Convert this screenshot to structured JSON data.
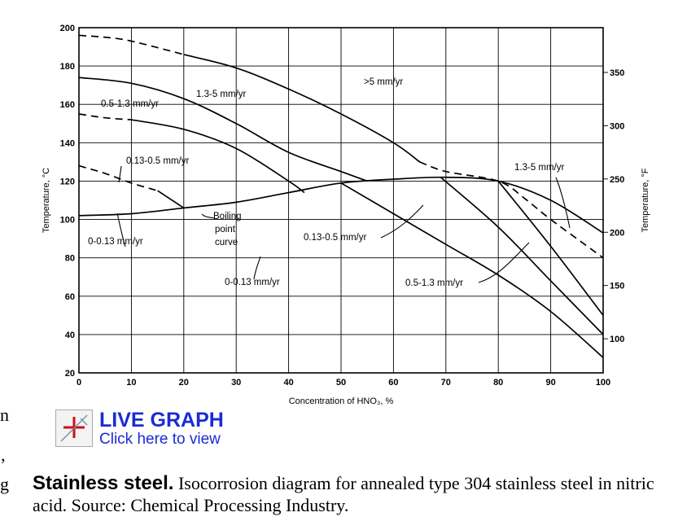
{
  "chart_data": {
    "type": "line",
    "title": "",
    "xlabel": "Concentration of HNO₃, %",
    "ylabel": "Temperature, °C",
    "y2label": "Temperature, °F",
    "xlim": [
      0,
      100
    ],
    "ylim": [
      20,
      200
    ],
    "y2lim": [
      68,
      392
    ],
    "xticks": [
      "0",
      "10",
      "20",
      "30",
      "40",
      "50",
      "60",
      "70",
      "80",
      "90",
      "100"
    ],
    "yticks": [
      "20",
      "40",
      "60",
      "80",
      "100",
      "120",
      "140",
      "160",
      "180",
      "200"
    ],
    "y2ticks": [
      "100",
      "150",
      "200",
      "250",
      "300",
      "350"
    ],
    "grid": true,
    "series": [
      {
        "name": "Boiling point curve",
        "style": "solid",
        "x": [
          0,
          10,
          20,
          30,
          40,
          50,
          60,
          70,
          80,
          90,
          100
        ],
        "y": [
          102,
          103,
          106,
          109,
          114,
          119,
          121,
          122,
          120,
          110,
          93
        ]
      },
      {
        "style": "dashed",
        "x": [
          0,
          5,
          10,
          15
        ],
        "y": [
          128,
          124,
          119,
          115
        ]
      },
      {
        "style": "solid",
        "x": [
          15,
          20
        ],
        "y": [
          115,
          106
        ]
      },
      {
        "style": "dashed",
        "x": [
          0,
          5,
          10
        ],
        "y": [
          155,
          153,
          152
        ]
      },
      {
        "style": "solid",
        "x": [
          10,
          20,
          30,
          40,
          43
        ],
        "y": [
          152,
          147,
          137,
          120,
          114
        ]
      },
      {
        "style": "solid",
        "x": [
          0,
          10,
          20,
          30,
          40,
          50,
          55
        ],
        "y": [
          174,
          171,
          163,
          150,
          135,
          125,
          120
        ]
      },
      {
        "style": "dashed",
        "x": [
          0,
          5,
          10,
          20
        ],
        "y": [
          196,
          195,
          193,
          186
        ]
      },
      {
        "style": "solid",
        "x": [
          20,
          30,
          40,
          50,
          60,
          65
        ],
        "y": [
          186,
          179,
          168,
          155,
          140,
          130
        ]
      },
      {
        "style": "dashed",
        "x": [
          65,
          70,
          80,
          85,
          90,
          100
        ],
        "y": [
          130,
          125,
          120,
          111,
          100,
          80
        ]
      },
      {
        "style": "solid",
        "x": [
          50,
          60,
          70,
          80,
          90,
          100
        ],
        "y": [
          119,
          103,
          87,
          71,
          52,
          28
        ]
      },
      {
        "style": "solid",
        "x": [
          69,
          80,
          90,
          100
        ],
        "y": [
          122,
          96,
          68,
          40
        ]
      },
      {
        "style": "solid",
        "x": [
          80,
          90,
          100
        ],
        "y": [
          120,
          86,
          50
        ]
      }
    ],
    "annotations": {
      "gt5": ">5 mm/yr",
      "r13_5": "1.3-5 mm/yr",
      "r05_13_top": "0.5-1.3 mm/yr",
      "r013_05_top": "0.13-0.5 mm/yr",
      "r0_013_left": "0-0.13 mm/yr",
      "boiling_1": "Boiling",
      "boiling_2": "point",
      "boiling_3": "curve",
      "r0_013_mid": "0-0.13 mm/yr",
      "r013_05_mid": "0.13-0.5 mm/yr",
      "r05_13_bottom": "0.5-1.3 mm/yr",
      "r13_5_right": "1.3-5 mm/yr"
    }
  },
  "live_graph": {
    "title": "LIVE GRAPH",
    "subtitle": "Click here to view"
  },
  "caption": {
    "bold": "Stainless steel.",
    "text": " Isocorrosion diagram for annealed type 304 stainless steel in nitric acid. Source: Chemical Processing Industry."
  },
  "margin_fragments": [
    "n",
    "’",
    "g"
  ]
}
